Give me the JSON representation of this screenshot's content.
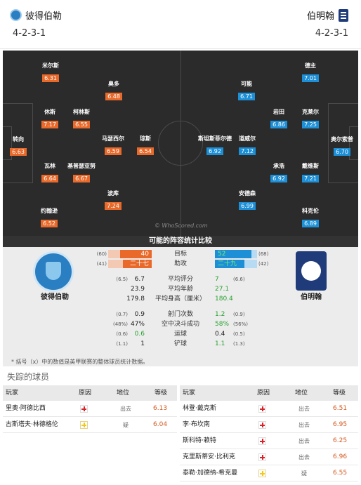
{
  "header": {
    "home_team": "彼得伯勒",
    "away_team": "伯明翰",
    "home_formation": "4-2-3-1",
    "away_formation": "4-2-3-1"
  },
  "pitch": {
    "watermark": "© WhoScored.com",
    "home_players": [
      {
        "name": "米尔斯",
        "rating": "6.31"
      },
      {
        "name": "奥多",
        "rating": "6.48"
      },
      {
        "name": "休斯",
        "rating": "7.17"
      },
      {
        "name": "柯林斯",
        "rating": "6.55"
      },
      {
        "name": "马瑟西尔",
        "rating": "6.59"
      },
      {
        "name": "琼斯",
        "rating": "6.54"
      },
      {
        "name": "转向",
        "rating": "6.63"
      },
      {
        "name": "瓦林",
        "rating": "6.64"
      },
      {
        "name": "基普瑟亚努",
        "rating": "6.67"
      },
      {
        "name": "波库",
        "rating": "7.24"
      },
      {
        "name": "约翰逊",
        "rating": "6.52"
      }
    ],
    "away_players": [
      {
        "name": "德主",
        "rating": "7.01"
      },
      {
        "name": "可能",
        "rating": "6.71"
      },
      {
        "name": "岩田",
        "rating": "6.86"
      },
      {
        "name": "克莱尔",
        "rating": "7.25"
      },
      {
        "name": "斯坦斯菲尔德",
        "rating": "6.92"
      },
      {
        "name": "道威尔",
        "rating": "7.12"
      },
      {
        "name": "奥尔索普",
        "rating": "6.70"
      },
      {
        "name": "承浩",
        "rating": "6.92"
      },
      {
        "name": "戴维斯",
        "rating": "7.21"
      },
      {
        "name": "安德森",
        "rating": "6.99"
      },
      {
        "name": "科克伦",
        "rating": "6.89"
      }
    ]
  },
  "compare": {
    "title": "可能的阵容统计比较",
    "home_label": "彼得伯勒",
    "away_label": "伯明翰",
    "bars": [
      {
        "label": "目标",
        "home_paren": "(60)",
        "home": "40",
        "home_frac": 0.72,
        "away": "52",
        "away_paren": "(68)",
        "away_frac": 0.86
      },
      {
        "label": "助攻",
        "home_paren": "(41)",
        "home": "二十七",
        "home_frac": 0.66,
        "away": "二十九",
        "away_paren": "(42)",
        "away_frac": 0.7
      }
    ],
    "stats": [
      {
        "label": "平均评分",
        "home_paren": "(6.5)",
        "home": "6.7",
        "away": "7",
        "away_paren": "(6.6)"
      },
      {
        "label": "平均年龄",
        "home_paren": "",
        "home": "23.9",
        "away": "27.1",
        "away_paren": ""
      },
      {
        "label": "平均身高（厘米）",
        "home_paren": "",
        "home": "179.8",
        "away": "180.4",
        "away_paren": ""
      },
      {
        "label": "射门次数",
        "home_paren": "(0.7)",
        "home": "0.9",
        "away": "1.2",
        "away_paren": "(0.9)"
      },
      {
        "label": "空中决斗成功",
        "home_paren": "(48%)",
        "home": "47%",
        "away": "58%",
        "away_paren": "(56%)"
      },
      {
        "label": "运球",
        "home_paren": "(0.6)",
        "home": "0.6",
        "away": "0.4",
        "away_paren": "(0.5)"
      },
      {
        "label": "铲球",
        "home_paren": "(1.1)",
        "home": "1",
        "away": "1.1",
        "away_paren": "(1.3)"
      }
    ],
    "note": "* 括号（x）中的数值是英甲联赛的整体球员统计数据。"
  },
  "missing": {
    "title": "失踪的球员",
    "headers": {
      "player": "玩家",
      "reason": "原因",
      "position": "地位",
      "rating": "等级"
    },
    "home": [
      {
        "name": "里奥·阿德比西",
        "reason": "red-cross-icon",
        "status": "出去",
        "rating": "6.13"
      },
      {
        "name": "古斯塔夫·林德格伦",
        "reason": "yellow-cross-icon",
        "status": "疑",
        "rating": "6.04"
      }
    ],
    "away": [
      {
        "name": "林登·戴克斯",
        "reason": "red-cross-icon",
        "status": "出去",
        "rating": "6.51"
      },
      {
        "name": "李·布坎南",
        "reason": "red-cross-icon",
        "status": "出去",
        "rating": "6.95"
      },
      {
        "name": "斯科特·赖特",
        "reason": "red-cross-icon",
        "status": "出去",
        "rating": "6.25"
      },
      {
        "name": "克里斯蒂安·比利克",
        "reason": "red-cross-icon",
        "status": "出去",
        "rating": "6.96"
      },
      {
        "name": "泰勒·加德纳-希克曼",
        "reason": "yellow-cross-icon",
        "status": "疑",
        "rating": "6.55"
      }
    ]
  }
}
